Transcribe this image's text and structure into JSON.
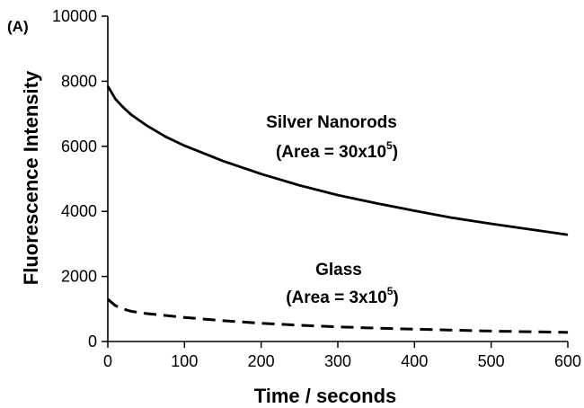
{
  "chart_data": {
    "type": "line",
    "panel_label": "(A)",
    "xlabel": "Time / seconds",
    "ylabel": "Fluorescence Intensity",
    "xlim": [
      0,
      600
    ],
    "ylim": [
      0,
      10000
    ],
    "x_ticks": [
      0,
      100,
      200,
      300,
      400,
      500,
      600
    ],
    "y_ticks": [
      0,
      2000,
      4000,
      6000,
      8000,
      10000
    ],
    "grid": false,
    "series": [
      {
        "style": "solid",
        "color": "#000000",
        "x": [
          0,
          10,
          20,
          30,
          50,
          75,
          100,
          150,
          200,
          250,
          300,
          350,
          400,
          450,
          500,
          550,
          600
        ],
        "y": [
          7850,
          7450,
          7200,
          6980,
          6650,
          6300,
          6020,
          5550,
          5150,
          4800,
          4500,
          4250,
          4020,
          3800,
          3620,
          3450,
          3280
        ]
      },
      {
        "style": "dashed",
        "color": "#000000",
        "x": [
          0,
          10,
          20,
          30,
          50,
          75,
          100,
          150,
          200,
          250,
          300,
          350,
          400,
          450,
          500,
          550,
          600
        ],
        "y": [
          1300,
          1100,
          1000,
          930,
          860,
          800,
          740,
          640,
          560,
          500,
          450,
          410,
          380,
          350,
          320,
          300,
          280
        ]
      }
    ],
    "annotations": [
      {
        "line1": "Silver Nanorods",
        "line2_prefix": "(Area = 30x10",
        "sup": "5",
        "line2_suffix": ")"
      },
      {
        "line1": "Glass",
        "line2_prefix": "(Area = 3x10",
        "sup": "5",
        "line2_suffix": ")"
      }
    ]
  }
}
